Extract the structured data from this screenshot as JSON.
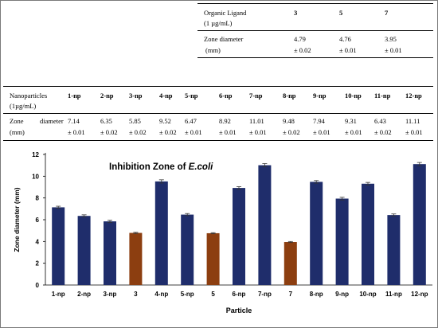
{
  "ligand_table": {
    "header": [
      "Organic Ligand",
      "3",
      "5",
      "7"
    ],
    "header_sub": "(1 µg/mL)",
    "row_label": "Zone diameter",
    "row_label_sub": "(mm)",
    "values": [
      "4.79",
      "4.76",
      "3.95"
    ],
    "errors": [
      "± 0.02",
      "± 0.01",
      "± 0.01"
    ]
  },
  "np_table": {
    "header_label": "Nanoparticles",
    "header_label_sub": "(1µg/mL)",
    "columns": [
      "1-np",
      "2-np",
      "3-np",
      "4-np",
      "5-np",
      "6-np",
      "7-np",
      "8-np",
      "9-np",
      "10-np",
      "11-np",
      "12-np"
    ],
    "row_label_a": "Zone",
    "row_label_b": "diameter",
    "row_label_sub": "(mm)",
    "values": [
      "7.14",
      "6.35",
      "5.85",
      "9.52",
      "6.47",
      "8.92",
      "11.01",
      "9.48",
      "7.94",
      "9.31",
      "6.43",
      "11.11"
    ],
    "errors": [
      "± 0.01",
      "± 0.02",
      "± 0.02",
      "± 0.02",
      "± 0.01",
      "± 0.01",
      "± 0.01",
      "± 0.02",
      "± 0.01",
      "± 0.01",
      "± 0.02",
      "± 0.01"
    ]
  },
  "colors": {
    "nanoparticle": "#1f2d6b",
    "ligand": "#8c3e10"
  },
  "chart_data": {
    "type": "bar",
    "title_prefix": "Inhibition Zone of ",
    "title_italic": "E.coli",
    "xlabel": "Particle",
    "ylabel": "Zone diameter (mm)",
    "ylim": [
      0,
      12
    ],
    "yticks": [
      0,
      2,
      4,
      6,
      8,
      10,
      12
    ],
    "grid": false,
    "categories": [
      "1-np",
      "2-np",
      "3-np",
      "3",
      "4-np",
      "5-np",
      "5",
      "6-np",
      "7-np",
      "7",
      "8-np",
      "9-np",
      "10-np",
      "11-np",
      "12-np"
    ],
    "values": [
      7.14,
      6.35,
      5.85,
      4.79,
      9.52,
      6.47,
      4.76,
      8.92,
      11.01,
      3.95,
      9.48,
      7.94,
      9.31,
      6.43,
      11.11
    ],
    "errors": [
      0.1,
      0.1,
      0.1,
      0.05,
      0.15,
      0.1,
      0.05,
      0.12,
      0.15,
      0.05,
      0.12,
      0.12,
      0.12,
      0.1,
      0.15
    ],
    "bar_kind": [
      "nanoparticle",
      "nanoparticle",
      "nanoparticle",
      "ligand",
      "nanoparticle",
      "nanoparticle",
      "ligand",
      "nanoparticle",
      "nanoparticle",
      "ligand",
      "nanoparticle",
      "nanoparticle",
      "nanoparticle",
      "nanoparticle",
      "nanoparticle"
    ]
  }
}
